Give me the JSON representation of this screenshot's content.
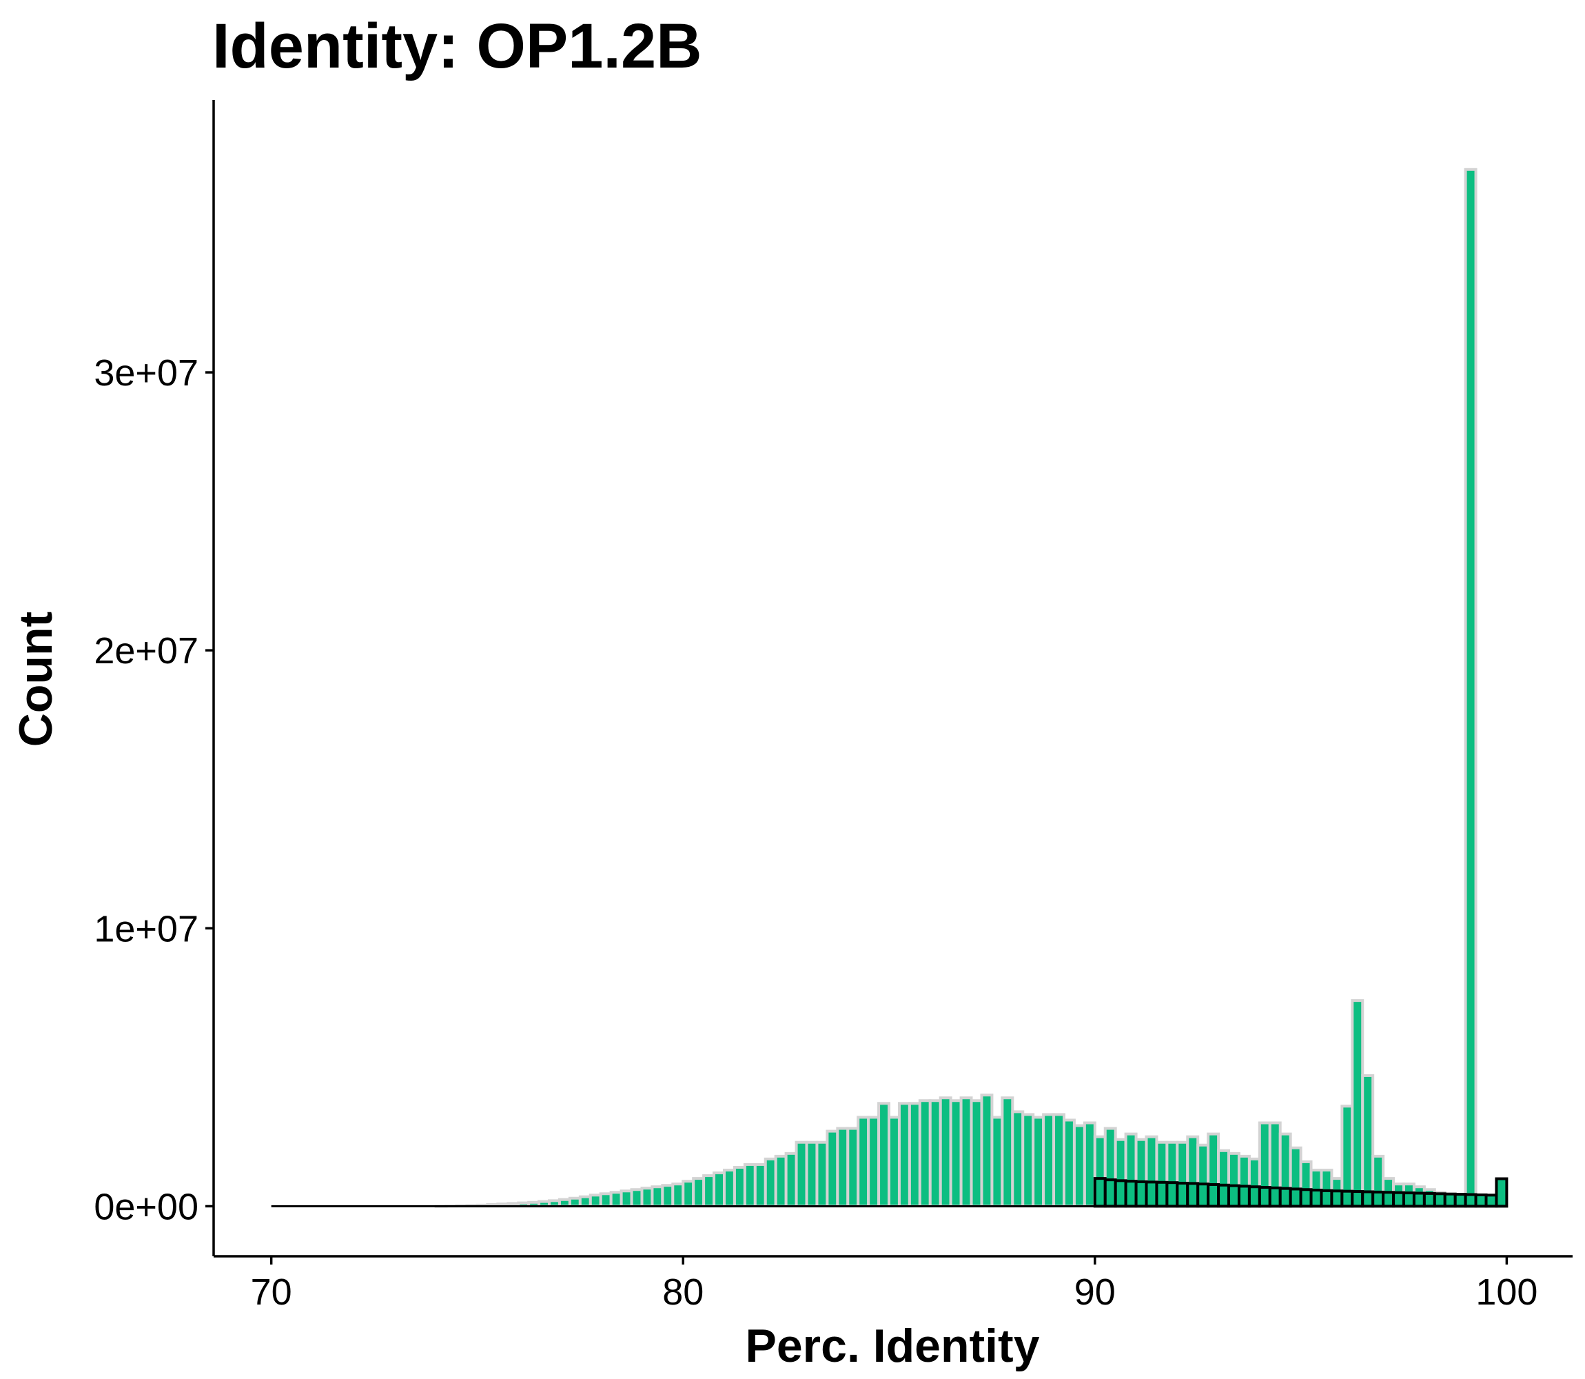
{
  "chart_data": {
    "type": "bar",
    "title": "Identity: OP1.2B",
    "xlabel": "Perc. Identity",
    "ylabel": "Count",
    "xlim": [
      68.6,
      101.6
    ],
    "ylim": [
      -1800000,
      39800000
    ],
    "xticks": [
      {
        "value": 70,
        "label": "70"
      },
      {
        "value": 80,
        "label": "80"
      },
      {
        "value": 90,
        "label": "90"
      },
      {
        "value": 100,
        "label": "100"
      }
    ],
    "yticks": [
      {
        "value": 0,
        "label": "0e+00"
      },
      {
        "value": 10000000,
        "label": "1e+07"
      },
      {
        "value": 20000000,
        "label": "2e+07"
      },
      {
        "value": 30000000,
        "label": "3e+07"
      }
    ],
    "grid": false,
    "legend": "none",
    "bin_width": 0.25,
    "colors": {
      "fill": "#0CBE81",
      "outline_main": "#D3D3D3",
      "outline_overlay": "#000000",
      "axis": "#000000"
    },
    "series": [
      {
        "x_start": 70.0,
        "counts": [
          0,
          0,
          0,
          0,
          0,
          0,
          0,
          0,
          0,
          0,
          0,
          0,
          0,
          0,
          0,
          0,
          5000,
          10000,
          20000,
          30000,
          40000,
          60000,
          80000,
          100000,
          120000,
          140000,
          170000,
          200000,
          240000,
          290000,
          340000,
          400000,
          450000,
          500000,
          550000,
          600000,
          650000,
          700000,
          750000,
          800000,
          900000,
          1000000,
          1100000,
          1200000,
          1300000,
          1400000,
          1500000,
          1500000,
          1700000,
          1800000,
          1900000,
          2300000,
          2300000,
          2300000,
          2700000,
          2800000,
          2800000,
          3200000,
          3200000,
          3700000,
          3200000,
          3700000,
          3700000,
          3800000,
          3800000,
          3900000,
          3800000,
          3900000,
          3800000,
          4000000,
          3200000,
          3900000,
          3400000,
          3300000,
          3200000,
          3300000,
          3300000,
          3100000,
          2900000,
          3000000,
          2500000,
          2800000,
          2400000,
          2600000,
          2400000,
          2500000,
          2300000,
          2300000,
          2300000,
          2500000,
          2200000,
          2600000,
          2000000,
          1900000,
          1800000,
          1700000,
          3000000,
          3000000,
          2600000,
          2100000,
          1600000,
          1300000,
          1300000,
          1000000,
          3600000,
          7400000,
          4700000,
          1800000,
          1000000,
          800000,
          800000,
          700000,
          600000,
          500000,
          400000,
          400000,
          37300000
        ]
      },
      {
        "x_start": 90.0,
        "counts": [
          1000000,
          950000,
          920000,
          900000,
          880000,
          870000,
          860000,
          850000,
          830000,
          820000,
          800000,
          780000,
          760000,
          740000,
          720000,
          700000,
          680000,
          660000,
          640000,
          620000,
          600000,
          580000,
          560000,
          550000,
          540000,
          530000,
          520000,
          510000,
          500000,
          490000,
          480000,
          470000,
          460000,
          450000,
          440000,
          430000,
          420000,
          410000,
          400000,
          990000
        ]
      }
    ]
  }
}
